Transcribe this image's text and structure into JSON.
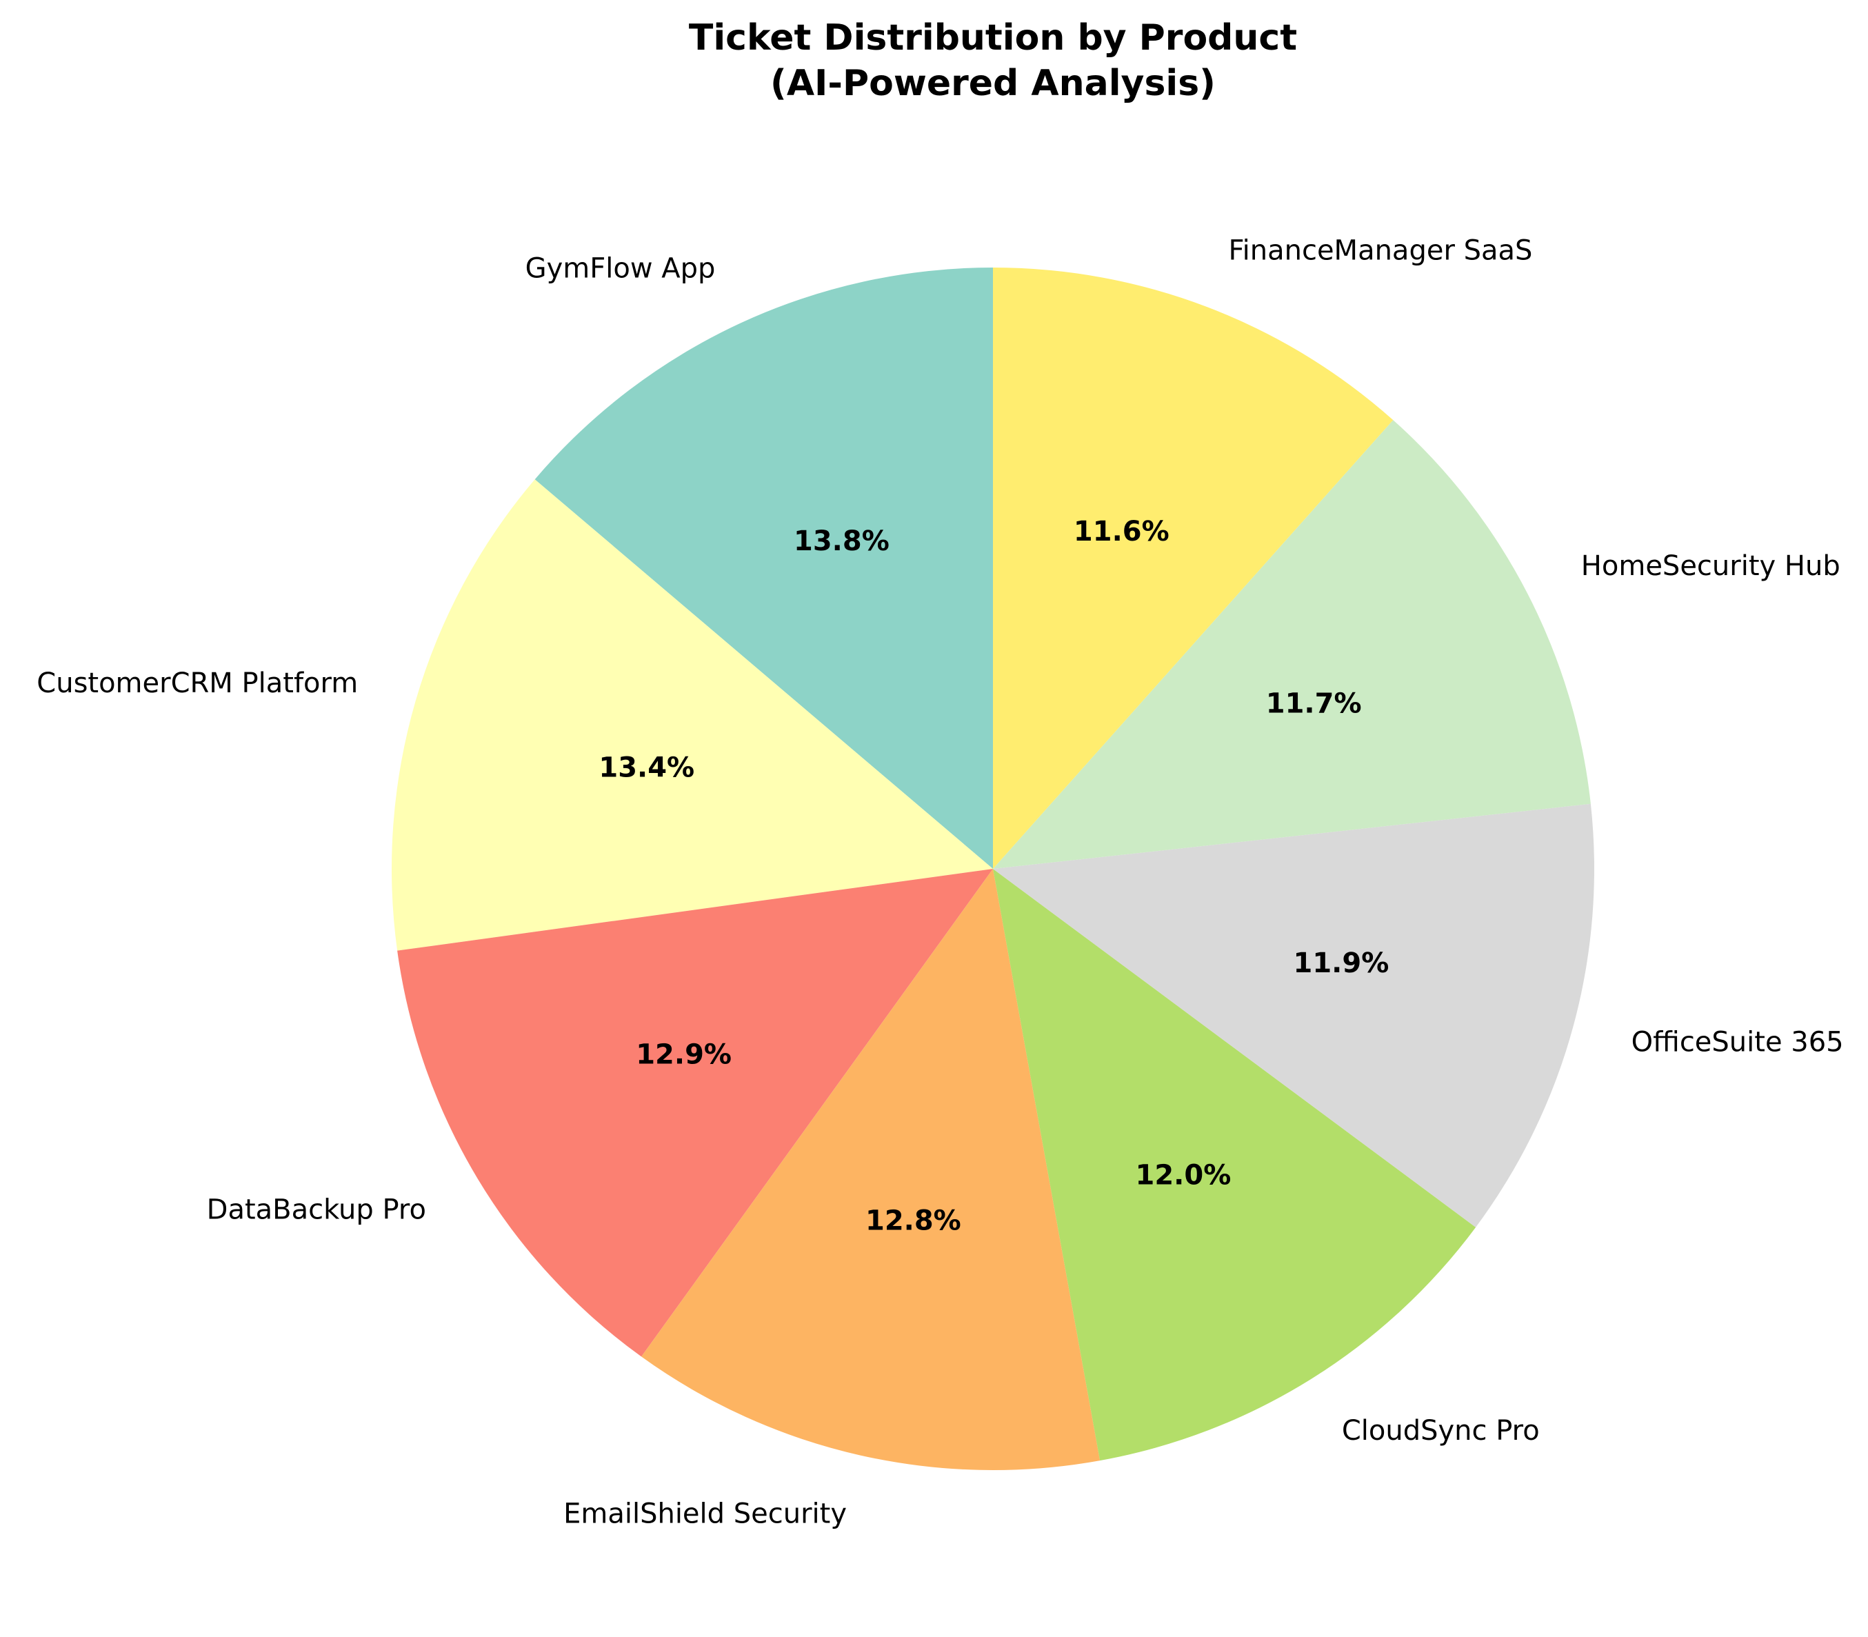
{
  "chart_data": {
    "type": "pie",
    "title_lines": [
      "Ticket Distribution by Product",
      "(AI-Powered Analysis)"
    ],
    "start_angle_deg": 90,
    "direction": "counterclockwise",
    "slices": [
      {
        "label": "GymFlow App",
        "value": 13.8,
        "pct_label": "13.8%",
        "color": "#8dd3c7"
      },
      {
        "label": "CustomerCRM Platform",
        "value": 13.4,
        "pct_label": "13.4%",
        "color": "#ffffb3"
      },
      {
        "label": "DataBackup Pro",
        "value": 12.9,
        "pct_label": "12.9%",
        "color": "#fb8072"
      },
      {
        "label": "EmailShield Security",
        "value": 12.8,
        "pct_label": "12.8%",
        "color": "#fdb462"
      },
      {
        "label": "CloudSync Pro",
        "value": 12.0,
        "pct_label": "12.0%",
        "color": "#b3de69"
      },
      {
        "label": "OfficeSuite 365",
        "value": 11.9,
        "pct_label": "11.9%",
        "color": "#d9d9d9"
      },
      {
        "label": "HomeSecurity Hub",
        "value": 11.7,
        "pct_label": "11.7%",
        "color": "#ccebc5"
      },
      {
        "label": "FinanceManager SaaS",
        "value": 11.6,
        "pct_label": "11.6%",
        "color": "#ffed6f"
      }
    ]
  }
}
